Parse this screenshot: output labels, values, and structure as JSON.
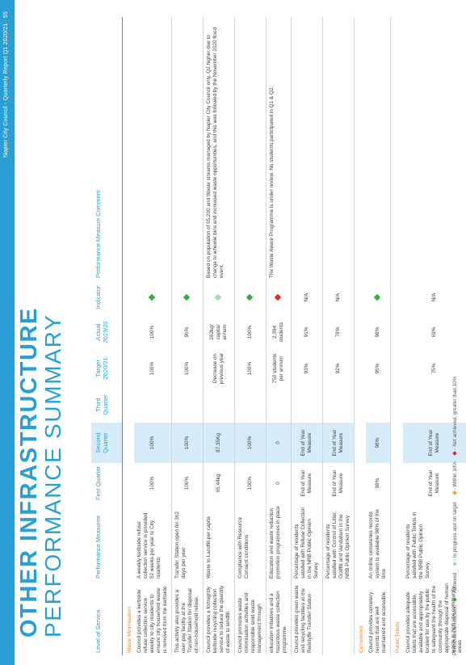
{
  "header": {
    "report_title": "Napier City Council - Quarterly Report Q1 2020/21",
    "page": "55"
  },
  "title": "OTHER INFRASTRUCTURE",
  "subtitle": "PERFORMANCE SUMMARY",
  "columns": {
    "service": "Level of Service",
    "measures": "Performance Measures",
    "q1": "First Quarter",
    "q2": "Second Quarter",
    "q3": "Third Quarter",
    "target": "Target 2020/21",
    "actual": "Actual 2019/20",
    "indicator": "Indicator",
    "comment": "Performance Measure Comment"
  },
  "sections": {
    "waste": "Waste Minimisation",
    "cemeteries": "Cemeteries",
    "toilets": "Public Toilets"
  },
  "rows": [
    {
      "service": "Council provides a kerbside refuse collection service weekly to city residents to ensure city household waste is removed from the kerbside.",
      "measure": "A weekly kerbside refuse collection service is provided 52 weeks per year to City residents",
      "q1": "100%",
      "q2": "100%",
      "q3": "",
      "target": "100%",
      "actual": "100%",
      "indicator": "green",
      "comment": ""
    },
    {
      "service": "This activity also provides a user-pay facility at the Transfer Station for disposal of non-household refuse.",
      "measure": "Transfer Station open for 362 days per year",
      "q1": "100%",
      "q2": "100%",
      "q3": "",
      "target": "100%",
      "actual": "96%",
      "indicator": "green",
      "comment": ""
    },
    {
      "service": "Council provides a fortnightly kerbside recycling collection service to reduce the quantity of waste to landfill.",
      "measure": "Waste to Landfill per capita",
      "q1": "65.44kg",
      "q2": "87.35Kg",
      "q3": "",
      "target": "Decrease on previous year",
      "actual": "262kg/ capita/ annum",
      "indicator": "lightgreen",
      "comment": "Based on population of 65,200 and Waste streams managed by Napier City Council only. Q2 higher due to change to wheelie bins and increased waste opportunities, and this was followed by the November 2020 flood event."
    },
    {
      "service": "Council promotes waste minimisation activities and responsible solid waste management through",
      "measure": "Compliance with Resource Consent conditions",
      "q1": "100%",
      "q2": "100%",
      "q3": "",
      "target": "100%",
      "actual": "100%",
      "indicator": "green",
      "comment": ""
    },
    {
      "service": "education initiatives and a hazardous waste collection programme.",
      "measure": "Education and waste reduction promotion programmes in place",
      "q1": "0",
      "q2": "0",
      "q3": "",
      "target": "750 students per annum",
      "actual": "2,394 students",
      "indicator": "red",
      "comment": "The Waste Aware Programme is under review. No students participated in Q1 & Q2."
    },
    {
      "service": "Council provides green waste and recycling facilities at the Redclyffe Transfer Station",
      "measure": "Percentage of residents satisfied with Refuse Collection in the NRB Public Opinion Survey",
      "q1": "End of Year Measure",
      "q2": "End of Year Measure",
      "q3": "",
      "target": "93%",
      "actual": "91%",
      "indicator": "N/A",
      "comment": ""
    },
    {
      "service": "",
      "measure": "Percentage of residents satisfied with Control of Litter, Graffiti and Vandalism in the NRB Public Opinion Survey",
      "q1": "End of Year Measure",
      "q2": "End of Year Measure",
      "q3": "",
      "target": "92%",
      "actual": "78%",
      "indicator": "N/A",
      "comment": ""
    },
    {
      "service": "Council provides cemetery records that are well maintained and accessible.",
      "measure": "An online cemeteries records system is available 98% of the time.",
      "q1": "98%",
      "q2": "98%",
      "q3": "",
      "target": "95%",
      "actual": "98%",
      "indicator": "green",
      "comment": ""
    },
    {
      "service": "Council provides adequate toilets that are accessible, available and appropriately located for use by the public to safeguard the health of the community through the appropriate disposal of human waste in high use community areas",
      "measure": "Percentage of residents satisfied with Public Toilets in the NRB Public Opinion Survey.",
      "q1": "End of Year Measure",
      "q2": "End of Year Measure",
      "q3": "",
      "target": "75%",
      "actual": "69%",
      "indicator": "N/A",
      "comment": ""
    }
  ],
  "legend": {
    "prefix": "Performance Indicator:",
    "achieved": "- Achieved",
    "in_progress": "- In progress and on target",
    "within": "- Within 10%",
    "not_achieved": "- Not achieved, greater than 10%"
  },
  "colors": {
    "accent": "#2a9fd6",
    "section": "#e88a2a",
    "green": "#2cae4a",
    "lightgreen": "#a6dca8",
    "orange": "#f5a623",
    "red": "#e22a2a"
  }
}
